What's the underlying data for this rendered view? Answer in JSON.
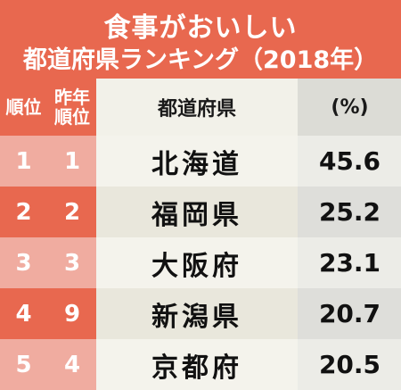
{
  "title": {
    "line1": "食事がおいしい",
    "line2": "都道府県ランキング（2018年）"
  },
  "header": {
    "rank": "順位",
    "prev_rank": "昨年順位",
    "prefecture": "都道府県",
    "value": "(%)"
  },
  "chart_data": {
    "type": "table",
    "columns": [
      "順位",
      "昨年順位",
      "都道府県",
      "(%)"
    ],
    "rows": [
      {
        "rank": "1",
        "prev_rank": "1",
        "prefecture": "北海道",
        "value": "45.6"
      },
      {
        "rank": "2",
        "prev_rank": "2",
        "prefecture": "福岡県",
        "value": "25.2"
      },
      {
        "rank": "3",
        "prev_rank": "3",
        "prefecture": "大阪府",
        "value": "23.1"
      },
      {
        "rank": "4",
        "prev_rank": "9",
        "prefecture": "新潟県",
        "value": "20.7"
      },
      {
        "rank": "5",
        "prev_rank": "4",
        "prefecture": "京都府",
        "value": "20.5"
      }
    ]
  },
  "colors": {
    "accent": "#e8684f",
    "accent_light": "#f0aca0",
    "row_light": "#f4f3ec",
    "row_dark": "#e9e7dc"
  }
}
